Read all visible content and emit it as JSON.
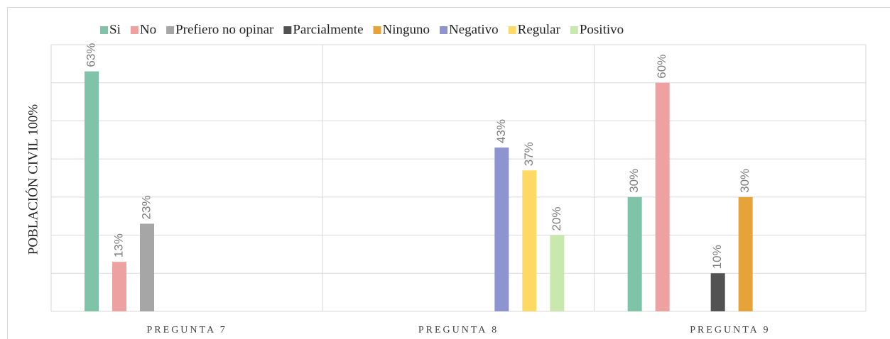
{
  "chart_data": {
    "type": "bar",
    "y_label": "POBLACIÓN CIVIL 100%",
    "categories": [
      "PREGUNTA 7",
      "PREGUNTA 8",
      "PREGUNTA 9"
    ],
    "series": [
      {
        "name": "Si",
        "color": "#7fc4a8",
        "values": [
          63,
          null,
          30
        ],
        "value_labels": [
          "63%",
          null,
          "30%"
        ]
      },
      {
        "name": "No",
        "color": "#eda1a0",
        "values": [
          13,
          null,
          60
        ],
        "value_labels": [
          "13%",
          null,
          "60%"
        ]
      },
      {
        "name": "Prefiero no opinar",
        "color": "#a6a6a6",
        "values": [
          23,
          null,
          null
        ],
        "value_labels": [
          "23%",
          null,
          null
        ]
      },
      {
        "name": "Parcialmente",
        "color": "#525252",
        "values": [
          null,
          null,
          10
        ],
        "value_labels": [
          null,
          null,
          "10%"
        ]
      },
      {
        "name": "Ninguno",
        "color": "#e5a33a",
        "values": [
          null,
          null,
          30
        ],
        "value_labels": [
          null,
          null,
          "30%"
        ]
      },
      {
        "name": "Negativo",
        "color": "#8e94d0",
        "values": [
          null,
          43,
          null
        ],
        "value_labels": [
          null,
          "43%",
          null
        ]
      },
      {
        "name": "Regular",
        "color": "#ffd966",
        "values": [
          null,
          37,
          null
        ],
        "value_labels": [
          null,
          "37%",
          null
        ]
      },
      {
        "name": "Positivo",
        "color": "#c9e8ad",
        "values": [
          null,
          20,
          null
        ],
        "value_labels": [
          null,
          "20%",
          null
        ]
      }
    ],
    "ylim": [
      0,
      70
    ],
    "yticks": [
      0,
      10,
      20,
      30,
      40,
      50,
      60,
      70
    ],
    "grid": true
  }
}
